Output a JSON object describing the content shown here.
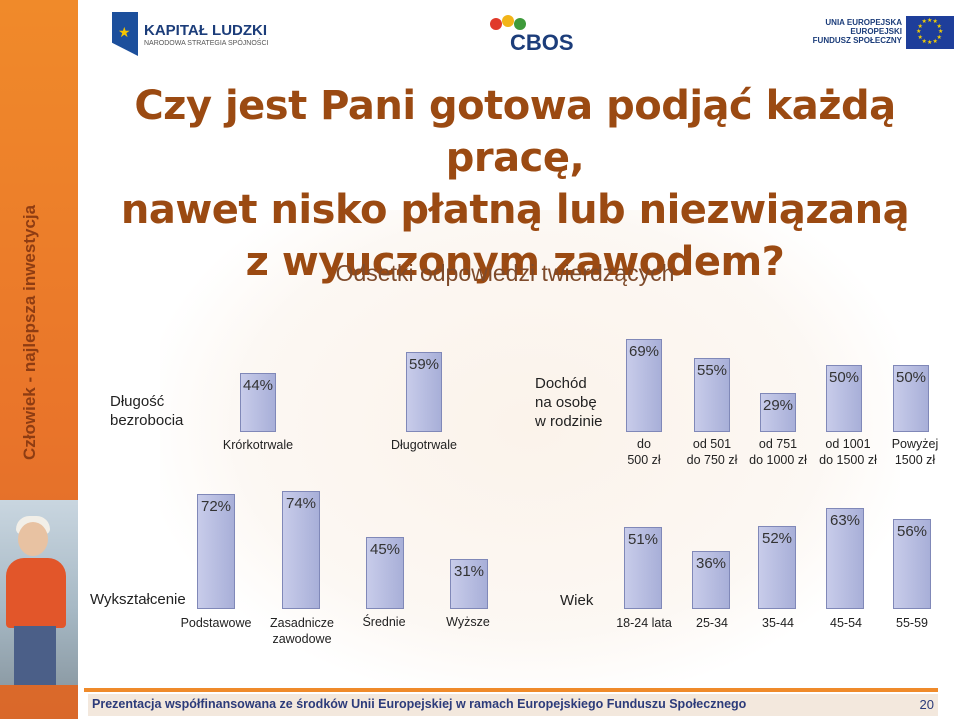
{
  "slide": {
    "side_slogan": "Człowiek - najlepsza inwestycja",
    "logos": {
      "left_title": "KAPITAŁ LUDZKI",
      "left_subtitle": "NARODOWA STRATEGIA SPÓJNOŚCI",
      "center": "CBOS",
      "right_text": "UNIA EUROPEJSKA\nEUROPEJSKI\nFUNDUSZ SPOŁECZNY"
    },
    "footer": "Prezentacja współfinansowana ze środków Unii Europejskiej w ramach Europejskiego Funduszu Społecznego",
    "page_number": "20",
    "colors": {
      "accent": "#ef8a2a",
      "title": "#9b4a12",
      "bar": "#b4badf"
    }
  },
  "chart_data": {
    "type": "bar",
    "title": "Czy jest Pani gotowa podjąć każdą pracę,\nnawet nisko płatną lub niezwiązaną\nz wyuczonym zawodem?",
    "subtitle": "Odsetki odpowiedzi twierdzących",
    "unit": "%",
    "groups": [
      {
        "label": "Długość\nbezrobocia",
        "categories": [
          "Krórkotrwale",
          "Długotrwale"
        ],
        "values": [
          44,
          59
        ]
      },
      {
        "label": "Dochód\nna osobę\nw rodzinie",
        "categories": [
          "do\n500 zł",
          "od 501\ndo 750 zł",
          "od 751\ndo 1000 zł",
          "od 1001\ndo 1500 zł",
          "Powyżej\n1500 zł"
        ],
        "values": [
          69,
          55,
          29,
          50,
          50
        ]
      },
      {
        "label": "Wykształcenie",
        "categories": [
          "Podstawowe",
          "Zasadnicze\nzawodowe",
          "Średnie",
          "Wyższe"
        ],
        "values": [
          72,
          74,
          45,
          31
        ]
      },
      {
        "label": "Wiek",
        "categories": [
          "18-24 lata",
          "25-34",
          "35-44",
          "45-54",
          "55-59"
        ],
        "values": [
          51,
          36,
          52,
          63,
          56
        ]
      }
    ]
  }
}
